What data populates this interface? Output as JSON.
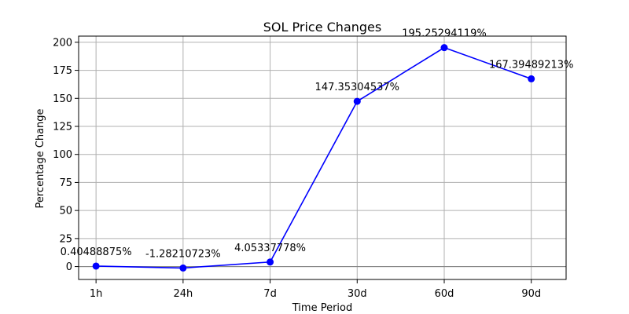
{
  "chart_data": {
    "type": "line",
    "title": "SOL Price Changes",
    "xlabel": "Time Period",
    "ylabel": "Percentage Change",
    "categories": [
      "1h",
      "24h",
      "7d",
      "30d",
      "60d",
      "90d"
    ],
    "values": [
      0.40488875,
      -1.28210723,
      4.05337778,
      147.35304537,
      195.25294119,
      167.39489213
    ],
    "data_labels": [
      "0.40488875%",
      "-1.28210723%",
      "4.05337778%",
      "147.35304537%",
      "195.25294119%",
      "167.39489213%"
    ],
    "yticks": [
      0,
      25,
      50,
      75,
      100,
      125,
      150,
      175,
      200
    ],
    "ylim": [
      -11.5,
      205.5
    ],
    "grid": true,
    "zero_line": true,
    "line_color": "#0000ff",
    "marker_color": "#0000ff",
    "grid_color": "#b0b0b0"
  }
}
